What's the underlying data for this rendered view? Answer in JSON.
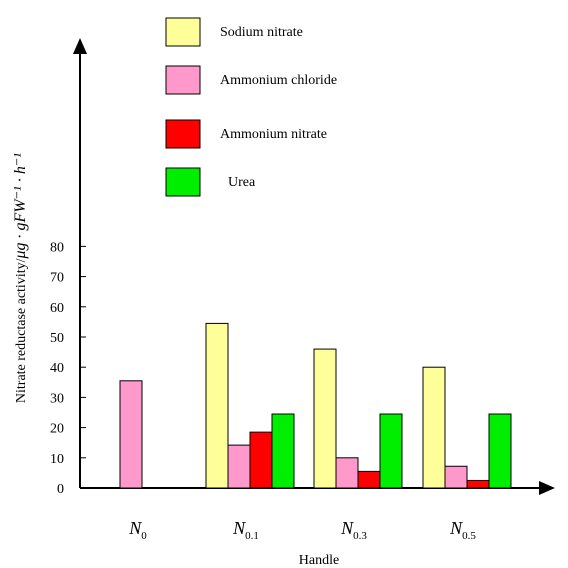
{
  "chart_data": {
    "type": "bar",
    "title": "",
    "xlabel": "Handle",
    "ylabel": "Nitrate reductase activity/",
    "ylabel_unit": "μg · gFW⁻¹ · h⁻¹",
    "ylim": [
      0,
      90
    ],
    "yticks": [
      0,
      10,
      20,
      30,
      40,
      50,
      60,
      70,
      80
    ],
    "categories": [
      {
        "main": "N",
        "sub": "0"
      },
      {
        "main": "N",
        "sub": "0.1"
      },
      {
        "main": "N",
        "sub": "0.3"
      },
      {
        "main": "N",
        "sub": "0.5"
      }
    ],
    "series": [
      {
        "name": "Sodium nitrate",
        "color": "#ffff99",
        "values": [
          0,
          54.5,
          46,
          40
        ]
      },
      {
        "name": "Ammonium chloride",
        "color": "#ff99cc",
        "values": [
          35.5,
          14.2,
          10,
          7.2
        ]
      },
      {
        "name": "Ammonium nitrate",
        "color": "#ff0000",
        "values": [
          0,
          18.5,
          5.5,
          2.5
        ]
      },
      {
        "name": "Urea",
        "color": "#00ee00",
        "values": [
          0,
          24.5,
          24.5,
          24.5
        ]
      }
    ],
    "legend_position": "top",
    "grid": false
  }
}
